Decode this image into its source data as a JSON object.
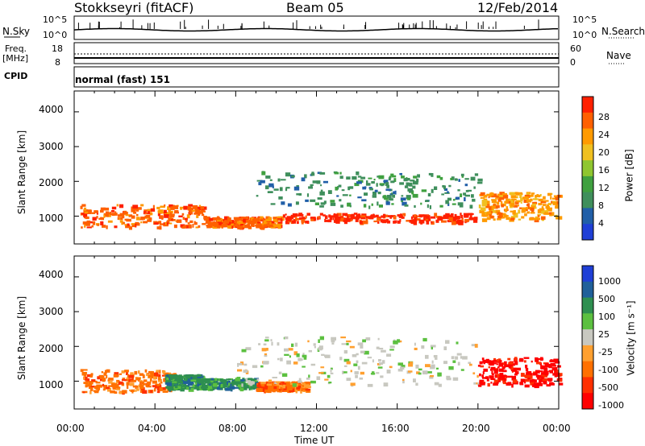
{
  "header": {
    "station": "Stokkseyri (fitACF)",
    "beam": "Beam 05",
    "date": "12/Feb/2014"
  },
  "top_panels": {
    "nsky_label": "N.Sky",
    "nsky_ticks": [
      "10^5",
      "10^0"
    ],
    "nsearch_label": "N.Search",
    "nsearch_ticks": [
      "10^5",
      "10^0"
    ],
    "freq_label": "Freq.",
    "freq_unit": "[MHz]",
    "freq_ticks": [
      "18",
      "8"
    ],
    "nave_label": "Nave",
    "nave_ticks": [
      "60",
      "0"
    ],
    "cpid_label": "CPID",
    "cpid_value": "normal (fast) 151"
  },
  "chart_data": [
    {
      "type": "heatmap",
      "panel": "power",
      "ylabel": "Slant Range [km]",
      "yticks": [
        "4000",
        "3000",
        "2000",
        "1000"
      ],
      "ylim": [
        200,
        4600
      ],
      "xlim_hours": [
        0,
        24
      ],
      "colorbar_label": "Power [dB]",
      "colorbar_ticks": [
        "28",
        "24",
        "20",
        "16",
        "12",
        "8",
        "4"
      ],
      "colors": [
        "#1f3fd6",
        "#215fa8",
        "#3f8f5c",
        "#3fa03f",
        "#8fc630",
        "#f0c020",
        "#ff9a00",
        "#ff6000",
        "#ff2000"
      ],
      "echo_bands": [
        {
          "t0": 0.3,
          "t1": 6.5,
          "r0": 700,
          "r1": 1350,
          "power_db": 26
        },
        {
          "t0": 6.5,
          "t1": 10.2,
          "r0": 700,
          "r1": 1000,
          "power_db": 24
        },
        {
          "t0": 10.2,
          "t1": 19.8,
          "r0": 850,
          "r1": 1100,
          "power_db": 27
        },
        {
          "t0": 9.0,
          "t1": 20.0,
          "r0": 1300,
          "r1": 2300,
          "power_db": 10
        },
        {
          "t0": 20.0,
          "t1": 24.0,
          "r0": 900,
          "r1": 1700,
          "power_db": 22
        }
      ]
    },
    {
      "type": "heatmap",
      "panel": "velocity",
      "ylabel": "Slant Range [km]",
      "yticks": [
        "4000",
        "3000",
        "2000",
        "1000"
      ],
      "ylim": [
        200,
        4600
      ],
      "xlim_hours": [
        0,
        24
      ],
      "xticks": [
        "00:00",
        "04:00",
        "08:00",
        "12:00",
        "16:00",
        "20:00",
        "00:00"
      ],
      "xlabel": "Time UT",
      "colorbar_label": "Velocity [m s⁻¹]",
      "colorbar_ticks": [
        "1000",
        "500",
        "100",
        "25",
        "-25",
        "-100",
        "-500",
        "-1000"
      ],
      "colors": [
        "#1f3fd6",
        "#20609a",
        "#2e8f50",
        "#5cc040",
        "#c8c8c0",
        "#ffa030",
        "#ff7000",
        "#ff3000",
        "#ff0000"
      ],
      "echo_bands": [
        {
          "t0": 0.3,
          "t1": 5.0,
          "r0": 700,
          "r1": 1350,
          "velocity": -300
        },
        {
          "t0": 4.5,
          "t1": 6.3,
          "r0": 800,
          "r1": 1200,
          "velocity": 200
        },
        {
          "t0": 6.3,
          "t1": 9.0,
          "r0": 800,
          "r1": 1100,
          "velocity": 80
        },
        {
          "t0": 9.0,
          "t1": 11.5,
          "r0": 750,
          "r1": 1000,
          "velocity": -150
        },
        {
          "t0": 8.0,
          "t1": 20.0,
          "r0": 900,
          "r1": 2300,
          "velocity": 0
        },
        {
          "t0": 20.0,
          "t1": 24.0,
          "r0": 900,
          "r1": 1700,
          "velocity": -800
        }
      ]
    }
  ]
}
